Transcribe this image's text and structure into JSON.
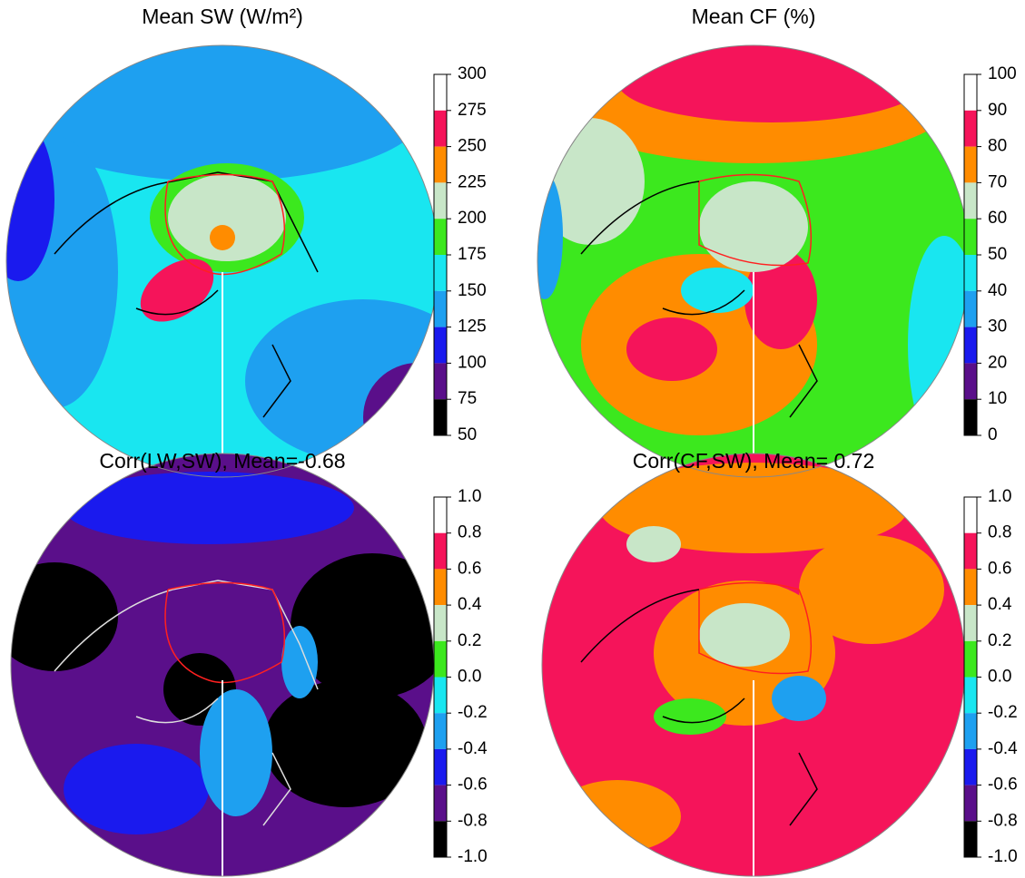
{
  "panels": [
    {
      "title": "Mean SW (W/m²)",
      "colorbar": {
        "ticks": [
          300,
          275,
          250,
          225,
          200,
          175,
          150,
          125,
          100,
          75,
          50
        ],
        "colors": [
          "#ffffff",
          "#f5145a",
          "#ff8c00",
          "#c8e6c8",
          "#3ce81e",
          "#19e6f0",
          "#1ea0f0",
          "#1a1aee",
          "#5a0f8a",
          "#000000"
        ]
      }
    },
    {
      "title": "Mean CF (%)",
      "colorbar": {
        "ticks": [
          100,
          90,
          80,
          70,
          60,
          50,
          40,
          30,
          20,
          10,
          0
        ],
        "colors": [
          "#ffffff",
          "#f5145a",
          "#ff8c00",
          "#c8e6c8",
          "#3ce81e",
          "#19e6f0",
          "#1ea0f0",
          "#1a1aee",
          "#5a0f8a",
          "#000000"
        ]
      }
    },
    {
      "title": "Corr(LW,SW), Mean=-0.68",
      "colorbar": {
        "ticks": [
          {
            "value": 1,
            "label": "1.0"
          },
          0.8,
          0.6,
          0.4,
          0.2,
          {
            "value": 0,
            "label": "0.0"
          },
          -0.2,
          -0.4,
          -0.6,
          -0.8,
          {
            "value": -1,
            "label": "-1.0"
          }
        ],
        "colors": [
          "#ffffff",
          "#f5145a",
          "#ff8c00",
          "#c8e6c8",
          "#3ce81e",
          "#19e6f0",
          "#1ea0f0",
          "#1a1aee",
          "#5a0f8a",
          "#000000"
        ]
      }
    },
    {
      "title": "Corr(CF,SW), Mean= 0.72",
      "colorbar": {
        "ticks": [
          {
            "value": 1,
            "label": "1.0"
          },
          0.8,
          0.6,
          0.4,
          0.2,
          {
            "value": 0,
            "label": "0.0"
          },
          -0.2,
          -0.4,
          -0.6,
          -0.8,
          {
            "value": -1,
            "label": "-1.0"
          }
        ],
        "colors": [
          "#ffffff",
          "#f5145a",
          "#ff8c00",
          "#c8e6c8",
          "#3ce81e",
          "#19e6f0",
          "#1ea0f0",
          "#1a1aee",
          "#5a0f8a",
          "#000000"
        ]
      }
    }
  ]
}
